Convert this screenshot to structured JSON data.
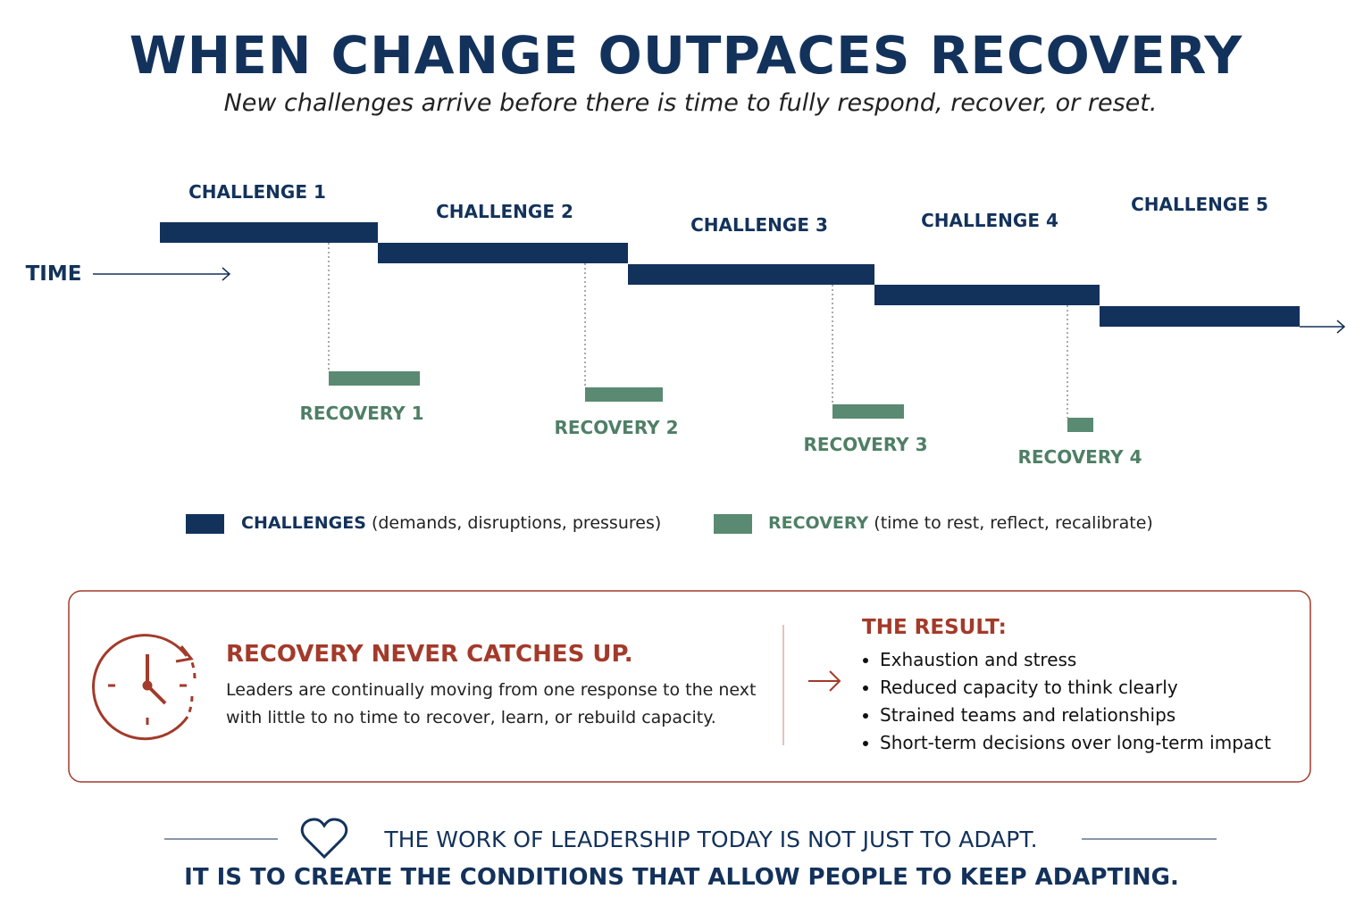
{
  "header": {
    "title": "WHEN CHANGE OUTPACES RECOVERY",
    "subtitle": "New challenges arrive before there is time to fully respond, recover, or reset."
  },
  "timeline": {
    "axis_label": "TIME",
    "challenges": [
      "CHALLENGE 1",
      "CHALLENGE 2",
      "CHALLENGE 3",
      "CHALLENGE 4",
      "CHALLENGE 5"
    ],
    "recoveries": [
      "RECOVERY 1",
      "RECOVERY 2",
      "RECOVERY 3",
      "RECOVERY 4"
    ]
  },
  "legend": [
    {
      "name": "CHALLENGES",
      "description": "(demands, disruptions, pressures)"
    },
    {
      "name": "RECOVERY",
      "description": "(time to rest, reflect, recalibrate)"
    }
  ],
  "callout": {
    "heading": "RECOVERY NEVER CATCHES UP.",
    "body": "Leaders are continually moving from one response to the next with little to no time to recover, learn, or rebuild capacity.",
    "result_title": "THE RESULT:",
    "results": [
      "Exhaustion and stress",
      "Reduced capacity to think clearly",
      "Strained teams and relationships",
      "Short-term decisions over long-term impact"
    ]
  },
  "footer": {
    "line1": "THE WORK OF LEADERSHIP TODAY IS NOT JUST TO ADAPT.",
    "line2": "IT IS TO CREATE THE CONDITIONS THAT ALLOW PEOPLE TO KEEP ADAPTING."
  }
}
